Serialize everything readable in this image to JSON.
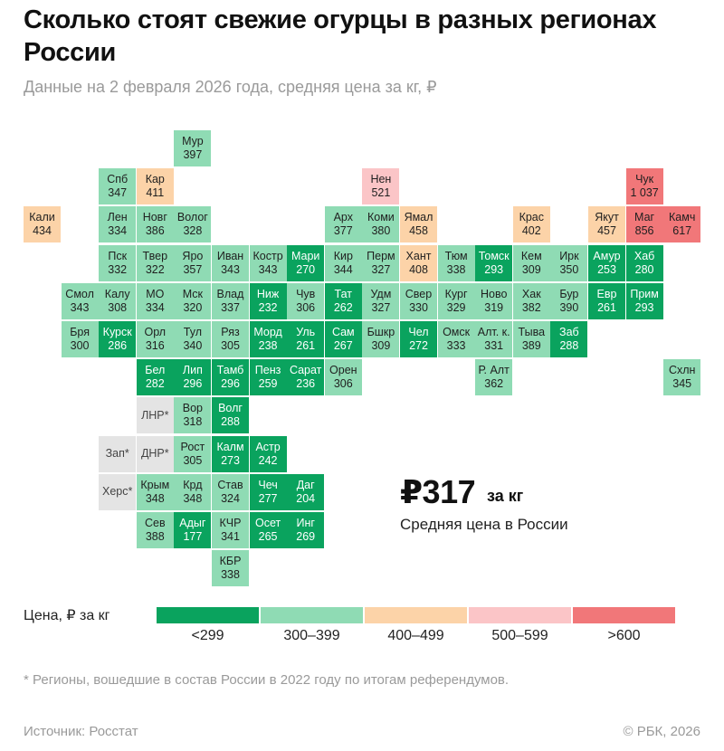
{
  "title": "Сколько стоят свежие огурцы в разных регионах России",
  "subtitle": "Данные на 2 февраля 2026 года, средняя цена за кг, ₽",
  "colors": {
    "lt300": "#0aa35e",
    "r300_399": "#8fdbb4",
    "r400_499": "#fcd3a8",
    "r500_599": "#fbc5c7",
    "gt600": "#f17779",
    "na": "#e4e4e4"
  },
  "regions": [
    {
      "abbr": "Мур",
      "price": "397",
      "col": 4,
      "row": 0
    },
    {
      "abbr": "Спб",
      "price": "347",
      "col": 2,
      "row": 1
    },
    {
      "abbr": "Кар",
      "price": "411",
      "col": 3,
      "row": 1
    },
    {
      "abbr": "Нен",
      "price": "521",
      "col": 9,
      "row": 1
    },
    {
      "abbr": "Чук",
      "price": "1 037",
      "col": 16,
      "row": 1
    },
    {
      "abbr": "Кали",
      "price": "434",
      "col": 0,
      "row": 2
    },
    {
      "abbr": "Лен",
      "price": "334",
      "col": 2,
      "row": 2
    },
    {
      "abbr": "Новг",
      "price": "386",
      "col": 3,
      "row": 2
    },
    {
      "abbr": "Волог",
      "price": "328",
      "col": 4,
      "row": 2
    },
    {
      "abbr": "Арх",
      "price": "377",
      "col": 8,
      "row": 2
    },
    {
      "abbr": "Коми",
      "price": "380",
      "col": 9,
      "row": 2
    },
    {
      "abbr": "Ямал",
      "price": "458",
      "col": 10,
      "row": 2
    },
    {
      "abbr": "Крас",
      "price": "402",
      "col": 13,
      "row": 2
    },
    {
      "abbr": "Якут",
      "price": "457",
      "col": 15,
      "row": 2
    },
    {
      "abbr": "Маг",
      "price": "856",
      "col": 16,
      "row": 2
    },
    {
      "abbr": "Камч",
      "price": "617",
      "col": 17,
      "row": 2
    },
    {
      "abbr": "Пск",
      "price": "332",
      "col": 2,
      "row": 3
    },
    {
      "abbr": "Твер",
      "price": "322",
      "col": 3,
      "row": 3
    },
    {
      "abbr": "Яро",
      "price": "357",
      "col": 4,
      "row": 3
    },
    {
      "abbr": "Иван",
      "price": "343",
      "col": 5,
      "row": 3
    },
    {
      "abbr": "Костр",
      "price": "343",
      "col": 6,
      "row": 3
    },
    {
      "abbr": "Мари",
      "price": "270",
      "col": 7,
      "row": 3
    },
    {
      "abbr": "Кир",
      "price": "344",
      "col": 8,
      "row": 3
    },
    {
      "abbr": "Перм",
      "price": "327",
      "col": 9,
      "row": 3
    },
    {
      "abbr": "Хант",
      "price": "408",
      "col": 10,
      "row": 3
    },
    {
      "abbr": "Тюм",
      "price": "338",
      "col": 11,
      "row": 3
    },
    {
      "abbr": "Томск",
      "price": "293",
      "col": 12,
      "row": 3
    },
    {
      "abbr": "Кем",
      "price": "309",
      "col": 13,
      "row": 3
    },
    {
      "abbr": "Ирк",
      "price": "350",
      "col": 14,
      "row": 3
    },
    {
      "abbr": "Амур",
      "price": "253",
      "col": 15,
      "row": 3
    },
    {
      "abbr": "Хаб",
      "price": "280",
      "col": 16,
      "row": 3
    },
    {
      "abbr": "Смол",
      "price": "343",
      "col": 1,
      "row": 4
    },
    {
      "abbr": "Калу",
      "price": "308",
      "col": 2,
      "row": 4
    },
    {
      "abbr": "МО",
      "price": "334",
      "col": 3,
      "row": 4
    },
    {
      "abbr": "Мск",
      "price": "320",
      "col": 4,
      "row": 4
    },
    {
      "abbr": "Влад",
      "price": "337",
      "col": 5,
      "row": 4
    },
    {
      "abbr": "Ниж",
      "price": "232",
      "col": 6,
      "row": 4
    },
    {
      "abbr": "Чув",
      "price": "306",
      "col": 7,
      "row": 4
    },
    {
      "abbr": "Тат",
      "price": "262",
      "col": 8,
      "row": 4
    },
    {
      "abbr": "Удм",
      "price": "327",
      "col": 9,
      "row": 4
    },
    {
      "abbr": "Свер",
      "price": "330",
      "col": 10,
      "row": 4
    },
    {
      "abbr": "Кург",
      "price": "329",
      "col": 11,
      "row": 4
    },
    {
      "abbr": "Ново",
      "price": "319",
      "col": 12,
      "row": 4
    },
    {
      "abbr": "Хак",
      "price": "382",
      "col": 13,
      "row": 4
    },
    {
      "abbr": "Бур",
      "price": "390",
      "col": 14,
      "row": 4
    },
    {
      "abbr": "Евр",
      "price": "261",
      "col": 15,
      "row": 4
    },
    {
      "abbr": "Прим",
      "price": "293",
      "col": 16,
      "row": 4
    },
    {
      "abbr": "Бря",
      "price": "300",
      "col": 1,
      "row": 5
    },
    {
      "abbr": "Курск",
      "price": "286",
      "col": 2,
      "row": 5
    },
    {
      "abbr": "Орл",
      "price": "316",
      "col": 3,
      "row": 5
    },
    {
      "abbr": "Тул",
      "price": "340",
      "col": 4,
      "row": 5
    },
    {
      "abbr": "Ряз",
      "price": "305",
      "col": 5,
      "row": 5
    },
    {
      "abbr": "Морд",
      "price": "238",
      "col": 6,
      "row": 5
    },
    {
      "abbr": "Уль",
      "price": "261",
      "col": 7,
      "row": 5
    },
    {
      "abbr": "Сам",
      "price": "267",
      "col": 8,
      "row": 5
    },
    {
      "abbr": "Бшкр",
      "price": "309",
      "col": 9,
      "row": 5
    },
    {
      "abbr": "Чел",
      "price": "272",
      "col": 10,
      "row": 5
    },
    {
      "abbr": "Омск",
      "price": "333",
      "col": 11,
      "row": 5
    },
    {
      "abbr": "Алт. к.",
      "price": "331",
      "col": 12,
      "row": 5
    },
    {
      "abbr": "Тыва",
      "price": "389",
      "col": 13,
      "row": 5
    },
    {
      "abbr": "Заб",
      "price": "288",
      "col": 14,
      "row": 5
    },
    {
      "abbr": "Бел",
      "price": "282",
      "col": 3,
      "row": 6
    },
    {
      "abbr": "Лип",
      "price": "296",
      "col": 4,
      "row": 6
    },
    {
      "abbr": "Тамб",
      "price": "296",
      "col": 5,
      "row": 6
    },
    {
      "abbr": "Пенз",
      "price": "259",
      "col": 6,
      "row": 6
    },
    {
      "abbr": "Сарат",
      "price": "236",
      "col": 7,
      "row": 6
    },
    {
      "abbr": "Орен",
      "price": "306",
      "col": 8,
      "row": 6
    },
    {
      "abbr": "Р. Алт",
      "price": "362",
      "col": 12,
      "row": 6
    },
    {
      "abbr": "Схлн",
      "price": "345",
      "col": 17,
      "row": 6
    },
    {
      "abbr": "ЛНР*",
      "price": "",
      "col": 3,
      "row": 7
    },
    {
      "abbr": "Вор",
      "price": "318",
      "col": 4,
      "row": 7
    },
    {
      "abbr": "Волг",
      "price": "288",
      "col": 5,
      "row": 7
    },
    {
      "abbr": "Зап*",
      "price": "",
      "col": 2,
      "row": 8
    },
    {
      "abbr": "ДНР*",
      "price": "",
      "col": 3,
      "row": 8
    },
    {
      "abbr": "Рост",
      "price": "305",
      "col": 4,
      "row": 8
    },
    {
      "abbr": "Калм",
      "price": "273",
      "col": 5,
      "row": 8
    },
    {
      "abbr": "Астр",
      "price": "242",
      "col": 6,
      "row": 8
    },
    {
      "abbr": "Херс*",
      "price": "",
      "col": 2,
      "row": 9
    },
    {
      "abbr": "Крым",
      "price": "348",
      "col": 3,
      "row": 9
    },
    {
      "abbr": "Крд",
      "price": "348",
      "col": 4,
      "row": 9
    },
    {
      "abbr": "Став",
      "price": "324",
      "col": 5,
      "row": 9
    },
    {
      "abbr": "Чеч",
      "price": "277",
      "col": 6,
      "row": 9
    },
    {
      "abbr": "Даг",
      "price": "204",
      "col": 7,
      "row": 9
    },
    {
      "abbr": "Сев",
      "price": "388",
      "col": 3,
      "row": 10
    },
    {
      "abbr": "Адыг",
      "price": "177",
      "col": 4,
      "row": 10
    },
    {
      "abbr": "КЧР",
      "price": "341",
      "col": 5,
      "row": 10
    },
    {
      "abbr": "Осет",
      "price": "265",
      "col": 6,
      "row": 10
    },
    {
      "abbr": "Инг",
      "price": "269",
      "col": 7,
      "row": 10
    },
    {
      "abbr": "КБР",
      "price": "338",
      "col": 5,
      "row": 11
    }
  ],
  "summary": {
    "price": "₽317",
    "unit": "за кг",
    "label": "Средняя цена в России"
  },
  "legend": {
    "title": "Цена, ₽ за кг",
    "items": [
      {
        "label": "<299",
        "color": "#0aa35e"
      },
      {
        "label": "300–399",
        "color": "#8fdbb4"
      },
      {
        "label": "400–499",
        "color": "#fcd3a8"
      },
      {
        "label": "500–599",
        "color": "#fbc5c7"
      },
      {
        "label": ">600",
        "color": "#f17779"
      }
    ]
  },
  "footnote": "* Регионы, вошедшие в состав России в 2022 году по итогам референдумов.",
  "source": "Источник: Росстат",
  "copyright": "© РБК, 2026"
}
